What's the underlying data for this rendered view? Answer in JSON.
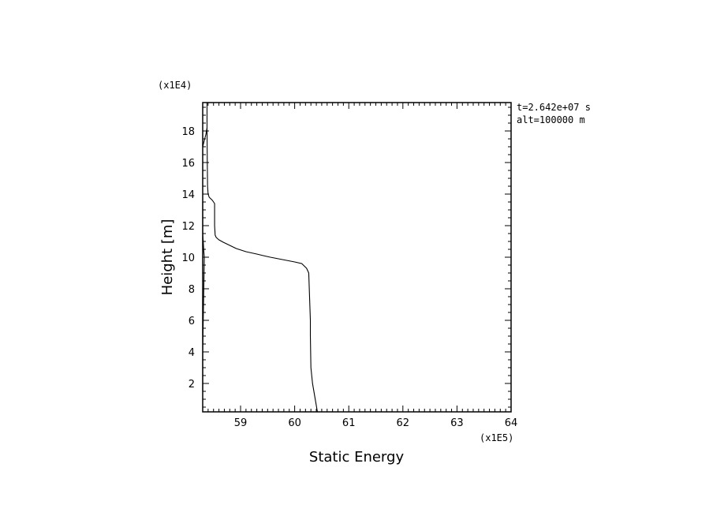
{
  "chart_data": {
    "type": "line",
    "xlabel": "Static Energy",
    "ylabel": "Height [m]",
    "x_multiplier_label": "(x1E5)",
    "y_multiplier_label": "(x1E4)",
    "xlim": [
      58.3,
      64
    ],
    "ylim": [
      0.2,
      19.8
    ],
    "x_ticks": [
      59,
      60,
      61,
      62,
      63,
      64
    ],
    "y_ticks": [
      2,
      4,
      6,
      8,
      10,
      12,
      14,
      16,
      18
    ],
    "annotations": [
      "t=2.642e+07 s",
      "alt=100000 m"
    ],
    "grid": false,
    "series": [
      {
        "x": [
          60.42,
          60.38,
          60.33,
          60.3,
          60.29,
          60.29,
          60.28,
          60.26,
          60.22,
          60.13,
          60.0,
          59.85,
          59.7,
          59.55,
          59.42,
          59.3,
          59.1,
          58.92,
          58.8,
          58.68,
          58.6,
          58.55,
          58.53,
          58.52,
          58.52,
          58.52,
          58.5,
          58.48,
          58.45,
          58.42,
          58.4,
          58.39,
          58.385,
          58.38,
          58.38
        ],
        "y": [
          0.2,
          1.0,
          2.0,
          3.0,
          5.0,
          6.0,
          7.0,
          9.0,
          9.3,
          9.6,
          9.7,
          9.8,
          9.9,
          10.0,
          10.1,
          10.2,
          10.35,
          10.55,
          10.75,
          10.95,
          11.1,
          11.25,
          11.4,
          12.0,
          13.0,
          13.4,
          13.5,
          13.6,
          13.7,
          13.8,
          14.0,
          14.5,
          16.0,
          18.0,
          19.8
        ]
      },
      {
        "x": [
          58.3,
          58.3,
          58.33,
          58.32,
          58.31,
          58.3,
          58.3,
          58.3,
          58.3
        ],
        "y": [
          1.5,
          4.0,
          10.0,
          10.4,
          11.0,
          11.5,
          12.0,
          13.0,
          13.5
        ]
      },
      {
        "x": [
          58.3,
          58.33,
          58.36,
          58.38
        ],
        "y": [
          17.0,
          17.4,
          17.8,
          18.2
        ]
      }
    ]
  }
}
